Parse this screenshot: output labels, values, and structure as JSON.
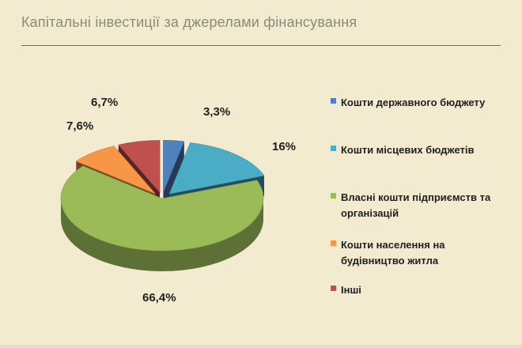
{
  "title": "Капітальні інвестиції за джерелами фінансування",
  "chart_data": {
    "type": "pie",
    "title": "Капітальні інвестиції за джерелами фінансування",
    "legend_position": "right",
    "slices": [
      {
        "label": "Кошти державного бюджету",
        "value": 3.3,
        "display": "3,3%",
        "color": "#4f81bd"
      },
      {
        "label": "Кошти місцевих бюджетів",
        "value": 16,
        "display": "16%",
        "color": "#4bacc6"
      },
      {
        "label": "Власні кошти підприємств та організацій",
        "value": 66.4,
        "display": "66,4%",
        "color": "#9bbb59"
      },
      {
        "label": "Кошти населення на будівництво житла",
        "value": 7.6,
        "display": "7,6%",
        "color": "#f79646"
      },
      {
        "label": "Інші",
        "value": 6.7,
        "display": "6,7%",
        "color": "#c0504d"
      }
    ]
  }
}
